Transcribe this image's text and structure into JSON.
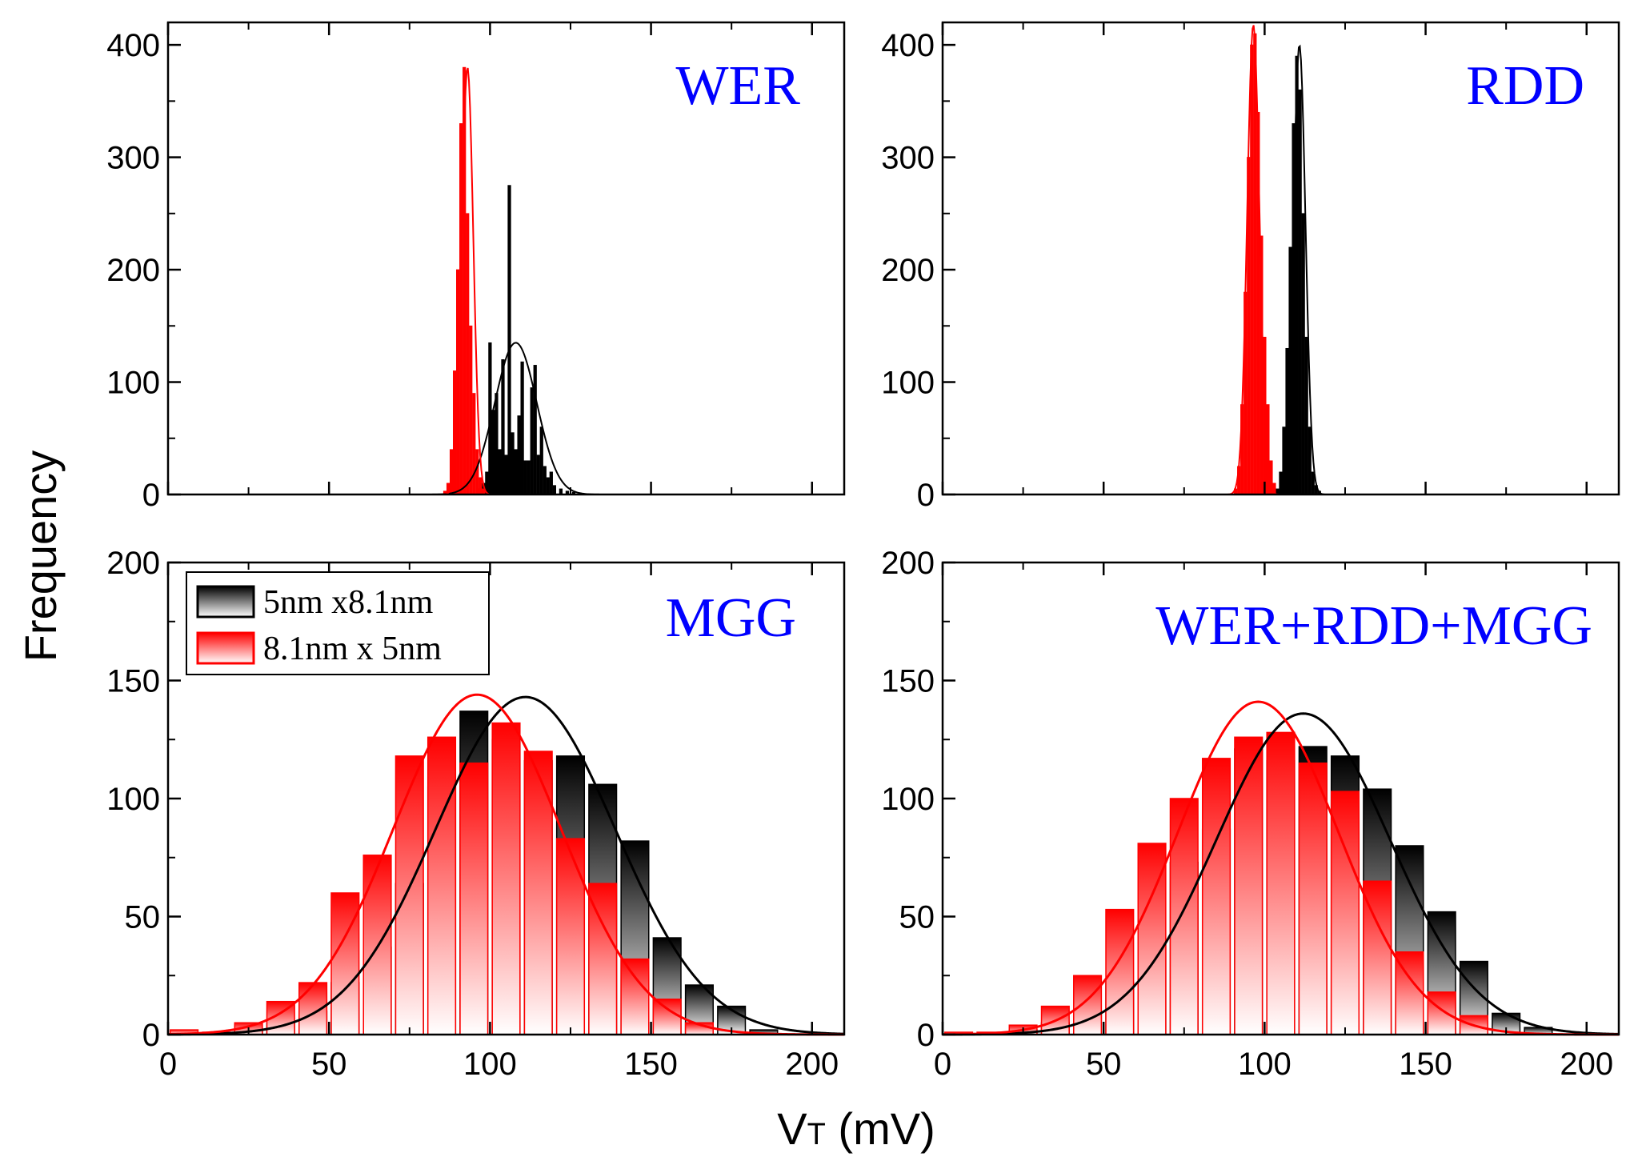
{
  "chart_data": {
    "type": "bar",
    "xlabel": "V",
    "xlabel_sub": "T",
    "xlabel_unit": " (mV)",
    "ylabel": "Frequency",
    "xlim": [
      0,
      210
    ],
    "x_ticks": [
      0,
      50,
      100,
      150,
      200
    ],
    "x_tick_labels": [
      "0",
      "50",
      "100",
      "150",
      "200"
    ],
    "legend": {
      "placement": "top-left of MGG panel",
      "entries": [
        {
          "label": "5nm x8.1nm",
          "color": "#000000"
        },
        {
          "label": "8.1nm x 5nm",
          "color": "#ff0000"
        }
      ]
    },
    "series_colors": {
      "black": "#000000",
      "red": "#ff0000",
      "label": "#0000ff"
    },
    "panels": [
      {
        "title": "WER",
        "ylim": [
          0,
          420
        ],
        "y_ticks": [
          0,
          100,
          200,
          300,
          400
        ],
        "y_tick_labels": [
          "0",
          "100",
          "200",
          "300",
          "400"
        ],
        "bin_width": 1,
        "black_bins": {
          "x": [
            97,
            98,
            99,
            100,
            101,
            102,
            103,
            104,
            105,
            106,
            107,
            108,
            109,
            110,
            111,
            112,
            113,
            114,
            115,
            116,
            117,
            118,
            119,
            120,
            122,
            124,
            126,
            128
          ],
          "y": [
            5,
            10,
            20,
            135,
            75,
            90,
            40,
            120,
            35,
            275,
            55,
            40,
            70,
            118,
            30,
            30,
            95,
            115,
            35,
            60,
            25,
            15,
            20,
            8,
            5,
            3,
            2,
            1
          ]
        },
        "red_bins": {
          "x": [
            86,
            87,
            88,
            89,
            90,
            91,
            92,
            93,
            94,
            95,
            96,
            97,
            98
          ],
          "y": [
            3,
            10,
            40,
            110,
            200,
            330,
            380,
            250,
            150,
            90,
            40,
            15,
            5
          ]
        },
        "black_fit": {
          "mean": 108,
          "sigma": 6.5,
          "peak": 135
        },
        "red_fit": {
          "mean": 93,
          "sigma": 1.8,
          "peak": 380
        }
      },
      {
        "title": "RDD",
        "ylim": [
          0,
          420
        ],
        "y_ticks": [
          0,
          100,
          200,
          300,
          400
        ],
        "y_tick_labels": [
          "0",
          "100",
          "200",
          "300",
          "400"
        ],
        "bin_width": 1,
        "black_bins": {
          "x": [
            104,
            105,
            106,
            107,
            108,
            109,
            110,
            111,
            112,
            113,
            114,
            115,
            116,
            117
          ],
          "y": [
            5,
            20,
            60,
            130,
            220,
            330,
            390,
            360,
            250,
            140,
            60,
            20,
            8,
            3
          ]
        },
        "red_bins": {
          "x": [
            91,
            92,
            93,
            94,
            95,
            96,
            97,
            98,
            99,
            100,
            101,
            102,
            103
          ],
          "y": [
            5,
            25,
            80,
            180,
            300,
            400,
            410,
            340,
            230,
            140,
            80,
            30,
            10
          ]
        },
        "black_fit": {
          "mean": 110.8,
          "sigma": 1.9,
          "peak": 400
        },
        "red_fit": {
          "mean": 96.5,
          "sigma": 1.9,
          "peak": 418
        }
      },
      {
        "title": "MGG",
        "ylim": [
          0,
          200
        ],
        "y_ticks": [
          0,
          50,
          100,
          150,
          200
        ],
        "y_tick_labels": [
          "0",
          "50",
          "100",
          "150",
          "200"
        ],
        "bin_width": 10,
        "has_legend": true,
        "black_bins": {
          "x": [
            25,
            35,
            45,
            55,
            65,
            75,
            85,
            95,
            105,
            115,
            125,
            135,
            145,
            155,
            165,
            175,
            185
          ],
          "y": [
            2,
            5,
            10,
            22,
            37,
            64,
            105,
            137,
            125,
            116,
            118,
            106,
            82,
            41,
            21,
            12,
            2
          ]
        },
        "red_bins": {
          "x": [
            5,
            15,
            25,
            35,
            45,
            55,
            65,
            75,
            85,
            95,
            105,
            115,
            125,
            135,
            145,
            155,
            165
          ],
          "y": [
            2,
            1,
            5,
            14,
            22,
            60,
            76,
            118,
            126,
            115,
            132,
            120,
            83,
            64,
            32,
            15,
            5
          ]
        },
        "black_fit": {
          "mean": 111,
          "sigma": 28,
          "peak": 143
        },
        "red_fit": {
          "mean": 96,
          "sigma": 26,
          "peak": 144
        }
      },
      {
        "title": "WER+RDD+MGG",
        "ylim": [
          0,
          200
        ],
        "y_ticks": [
          0,
          50,
          100,
          150,
          200
        ],
        "y_tick_labels": [
          "0",
          "50",
          "100",
          "150",
          "200"
        ],
        "bin_width": 10,
        "black_bins": {
          "x": [
            25,
            35,
            45,
            55,
            65,
            75,
            85,
            95,
            105,
            115,
            125,
            135,
            145,
            155,
            165,
            175,
            185
          ],
          "y": [
            2,
            5,
            9,
            22,
            38,
            73,
            87,
            121,
            116,
            122,
            118,
            104,
            80,
            52,
            31,
            9,
            3
          ]
        },
        "red_bins": {
          "x": [
            5,
            15,
            25,
            35,
            45,
            55,
            65,
            75,
            85,
            95,
            105,
            115,
            125,
            135,
            145,
            155,
            165
          ],
          "y": [
            1,
            1,
            4,
            12,
            25,
            53,
            81,
            100,
            117,
            126,
            128,
            115,
            103,
            65,
            35,
            18,
            8
          ]
        },
        "black_fit": {
          "mean": 112,
          "sigma": 27,
          "peak": 136
        },
        "red_fit": {
          "mean": 98,
          "sigma": 25,
          "peak": 141
        }
      }
    ]
  }
}
